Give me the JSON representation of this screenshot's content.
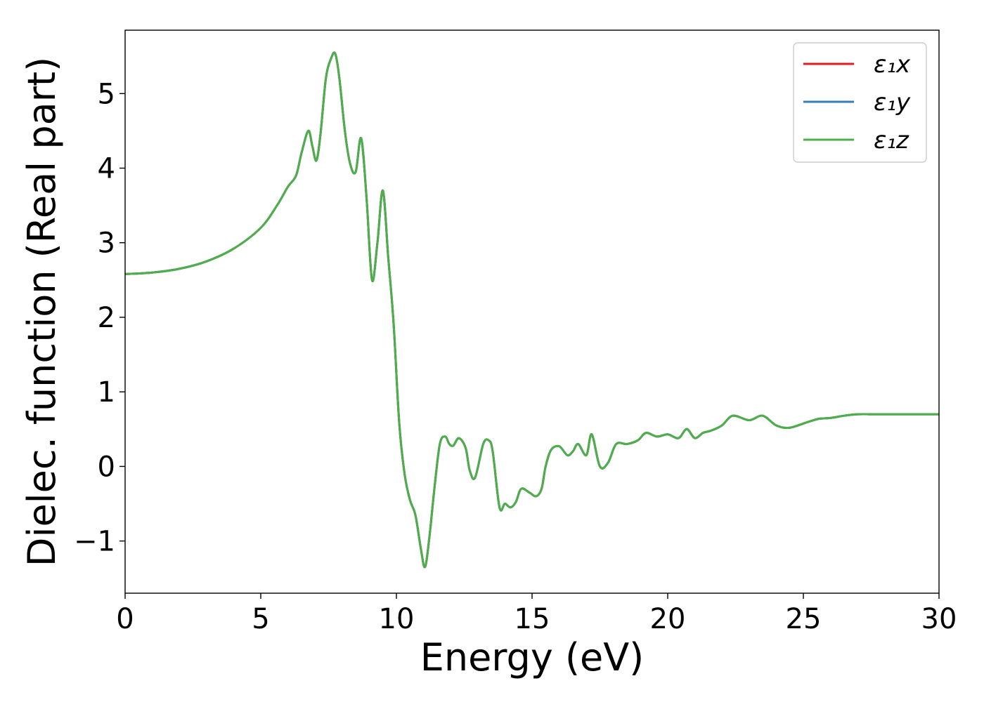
{
  "chart_data": {
    "type": "line",
    "title": "",
    "xlabel": "Energy (eV)",
    "ylabel": "Dielec. function (Real part)",
    "xlim": [
      0,
      30
    ],
    "ylim": [
      -1.7,
      5.85
    ],
    "xticks": [
      0,
      5,
      10,
      15,
      20,
      25,
      30
    ],
    "xtick_labels": [
      "0",
      "5",
      "10",
      "15",
      "20",
      "25",
      "30"
    ],
    "yticks": [
      -1,
      0,
      1,
      2,
      3,
      4,
      5
    ],
    "ytick_labels": [
      "−1",
      "0",
      "1",
      "2",
      "3",
      "4",
      "5"
    ],
    "grid": false,
    "legend_position": "top-right",
    "x": [
      0,
      1,
      2,
      3,
      4,
      5,
      5.6,
      6.0,
      6.3,
      6.5,
      6.75,
      6.9,
      7.05,
      7.2,
      7.4,
      7.6,
      7.75,
      7.9,
      8.1,
      8.3,
      8.5,
      8.7,
      8.9,
      9.1,
      9.3,
      9.5,
      9.7,
      9.9,
      10.1,
      10.3,
      10.5,
      10.7,
      10.9,
      11.05,
      11.2,
      11.4,
      11.6,
      11.8,
      11.95,
      12.1,
      12.3,
      12.55,
      12.7,
      12.9,
      13.2,
      13.4,
      13.55,
      13.8,
      14.0,
      14.2,
      14.4,
      14.6,
      14.9,
      15.15,
      15.35,
      15.5,
      15.7,
      16.0,
      16.3,
      16.5,
      16.7,
      17.0,
      17.2,
      17.5,
      17.8,
      18.1,
      18.5,
      18.9,
      19.2,
      19.6,
      20.0,
      20.4,
      20.7,
      21.0,
      21.3,
      21.6,
      22.0,
      22.4,
      23.0,
      23.5,
      24.0,
      24.5,
      25.2,
      25.6,
      26.0,
      26.5,
      27.0,
      27.5,
      28.0,
      28.5,
      29.0,
      29.6,
      30.0
    ],
    "series": [
      {
        "name": "ε₁x",
        "color": "#e41a1c",
        "values": [
          2.58,
          2.6,
          2.65,
          2.75,
          2.92,
          3.2,
          3.5,
          3.75,
          3.9,
          4.2,
          4.5,
          4.3,
          4.1,
          4.45,
          5.2,
          5.48,
          5.53,
          5.2,
          4.5,
          4.05,
          3.95,
          4.4,
          3.6,
          2.5,
          3.0,
          3.7,
          2.8,
          1.9,
          0.6,
          -0.1,
          -0.45,
          -0.65,
          -1.1,
          -1.35,
          -1.0,
          -0.3,
          0.3,
          0.4,
          0.3,
          0.28,
          0.38,
          0.25,
          -0.05,
          -0.15,
          0.3,
          0.35,
          0.2,
          -0.55,
          -0.5,
          -0.55,
          -0.48,
          -0.3,
          -0.35,
          -0.4,
          -0.3,
          0.0,
          0.22,
          0.27,
          0.15,
          0.2,
          0.3,
          0.15,
          0.43,
          0.0,
          0.05,
          0.3,
          0.3,
          0.35,
          0.45,
          0.4,
          0.43,
          0.38,
          0.5,
          0.38,
          0.45,
          0.48,
          0.55,
          0.68,
          0.62,
          0.68,
          0.55,
          0.52,
          0.6,
          0.64,
          0.65,
          0.68,
          0.7,
          0.7,
          0.7,
          0.7,
          0.7,
          0.7,
          0.7
        ]
      },
      {
        "name": "ε₁y",
        "color": "#377eb8",
        "values": [
          2.58,
          2.6,
          2.65,
          2.75,
          2.92,
          3.2,
          3.5,
          3.75,
          3.9,
          4.2,
          4.5,
          4.3,
          4.1,
          4.45,
          5.2,
          5.48,
          5.53,
          5.2,
          4.5,
          4.05,
          3.95,
          4.4,
          3.6,
          2.5,
          3.0,
          3.7,
          2.8,
          1.9,
          0.6,
          -0.1,
          -0.45,
          -0.65,
          -1.1,
          -1.35,
          -1.0,
          -0.3,
          0.3,
          0.4,
          0.3,
          0.28,
          0.38,
          0.25,
          -0.05,
          -0.15,
          0.3,
          0.35,
          0.2,
          -0.55,
          -0.5,
          -0.55,
          -0.48,
          -0.3,
          -0.35,
          -0.4,
          -0.3,
          0.0,
          0.22,
          0.27,
          0.15,
          0.2,
          0.3,
          0.15,
          0.43,
          0.0,
          0.05,
          0.3,
          0.3,
          0.35,
          0.45,
          0.4,
          0.43,
          0.38,
          0.5,
          0.38,
          0.45,
          0.48,
          0.55,
          0.68,
          0.62,
          0.68,
          0.55,
          0.52,
          0.6,
          0.64,
          0.65,
          0.68,
          0.7,
          0.7,
          0.7,
          0.7,
          0.7,
          0.7,
          0.7
        ]
      },
      {
        "name": "ε₁z",
        "color": "#4daf4a",
        "values": [
          2.58,
          2.6,
          2.65,
          2.75,
          2.92,
          3.2,
          3.5,
          3.75,
          3.9,
          4.2,
          4.5,
          4.3,
          4.1,
          4.45,
          5.2,
          5.48,
          5.53,
          5.2,
          4.5,
          4.05,
          3.95,
          4.4,
          3.6,
          2.5,
          3.0,
          3.7,
          2.8,
          1.9,
          0.6,
          -0.1,
          -0.45,
          -0.65,
          -1.1,
          -1.35,
          -1.0,
          -0.3,
          0.3,
          0.4,
          0.3,
          0.28,
          0.38,
          0.25,
          -0.05,
          -0.15,
          0.3,
          0.35,
          0.2,
          -0.55,
          -0.5,
          -0.55,
          -0.48,
          -0.3,
          -0.35,
          -0.4,
          -0.3,
          0.0,
          0.22,
          0.27,
          0.15,
          0.2,
          0.3,
          0.15,
          0.43,
          0.0,
          0.05,
          0.3,
          0.3,
          0.35,
          0.45,
          0.4,
          0.43,
          0.38,
          0.5,
          0.38,
          0.45,
          0.48,
          0.55,
          0.68,
          0.62,
          0.68,
          0.55,
          0.52,
          0.6,
          0.64,
          0.65,
          0.68,
          0.7,
          0.7,
          0.7,
          0.7,
          0.7,
          0.7,
          0.7
        ]
      }
    ]
  }
}
